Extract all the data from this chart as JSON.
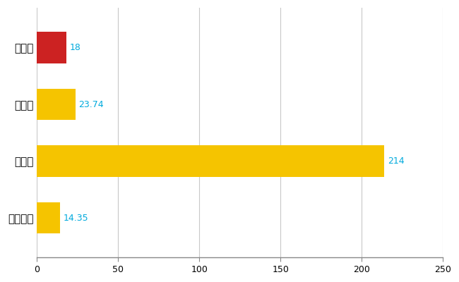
{
  "categories": [
    "秋葉区",
    "県平均",
    "県最大",
    "全国平均"
  ],
  "values": [
    18,
    23.74,
    214,
    14.35
  ],
  "bar_colors": [
    "#cc2222",
    "#f5c400",
    "#f5c400",
    "#f5c400"
  ],
  "value_labels": [
    "18",
    "23.74",
    "214",
    "14.35"
  ],
  "xlim": [
    0,
    250
  ],
  "xticks": [
    0,
    50,
    100,
    150,
    200,
    250
  ],
  "background_color": "#ffffff",
  "grid_color": "#c8c8c8",
  "label_color": "#00aadd",
  "bar_height": 0.55,
  "figsize": [
    6.5,
    4.0
  ],
  "dpi": 100
}
